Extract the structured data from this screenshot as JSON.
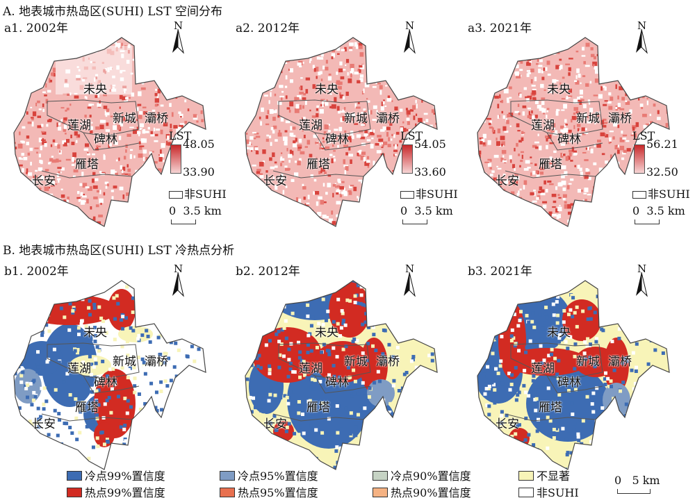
{
  "section_a": {
    "title": "A. 地表城市热岛区(SUHI) LST 空间分布",
    "panels": [
      {
        "label": "a1. 2002年",
        "lst_max": "48.05",
        "lst_min": "33.90"
      },
      {
        "label": "a2. 2012年",
        "lst_max": "54.05",
        "lst_min": "33.60"
      },
      {
        "label": "a3. 2021年",
        "lst_max": "56.21",
        "lst_min": "32.50"
      }
    ],
    "legend_title": "LST",
    "non_suhi": "非SUHI",
    "scale": "0  3.5 km"
  },
  "section_b": {
    "title": "B. 地表城市热岛区(SUHI) LST 冷热点分析",
    "panels": [
      {
        "label": "b1. 2002年"
      },
      {
        "label": "b2. 2012年"
      },
      {
        "label": "b3. 2021年"
      }
    ],
    "scale": "0   5 km"
  },
  "districts": [
    "未央",
    "莲湖",
    "新城",
    "灞桥",
    "碑林",
    "雁塔",
    "长安"
  ],
  "north": "N",
  "legend": [
    {
      "label": "冷点99%置信度",
      "color": "#3d6cb3"
    },
    {
      "label": "冷点95%置信度",
      "color": "#7f9cc4"
    },
    {
      "label": "冷点90%置信度",
      "color": "#c6d3c4"
    },
    {
      "label": "不显著",
      "color": "#f8f4b8"
    },
    {
      "label": "热点99%置信度",
      "color": "#d22b22"
    },
    {
      "label": "热点95%置信度",
      "color": "#e8704f"
    },
    {
      "label": "热点90%置信度",
      "color": "#f5b283"
    },
    {
      "label": "非SUHI",
      "color": "#ffffff"
    }
  ]
}
